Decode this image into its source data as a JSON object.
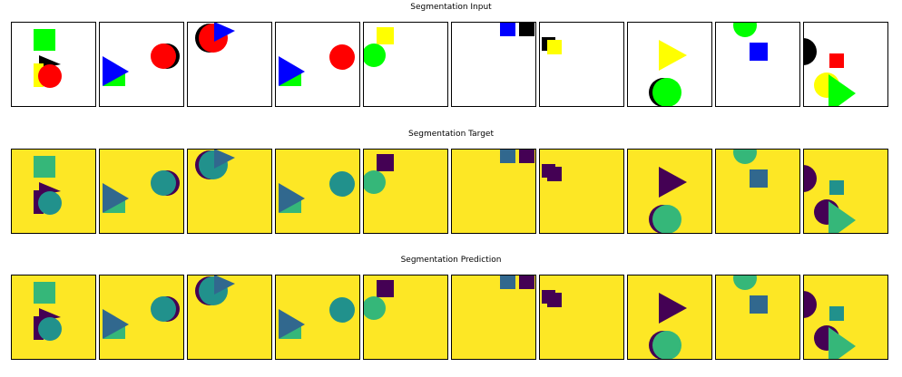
{
  "rows": [
    {
      "title": "Segmentation Input",
      "scheme": "input"
    },
    {
      "title": "Segmentation Target",
      "scheme": "label"
    },
    {
      "title": "Segmentation Prediction",
      "scheme": "label"
    }
  ],
  "colors": {
    "input": {
      "background": "#ffffff",
      "green": "#00ff00",
      "red": "#ff0000",
      "blue": "#0000ff",
      "black": "#000000",
      "yellow": "#ffff00"
    },
    "label": {
      "background": "#fde725",
      "green": "#35b779",
      "red": "#21918c",
      "blue": "#31688e",
      "black": "#440154",
      "yellow": "#440154"
    },
    "frame": "#000000"
  },
  "panels": [
    {
      "shapes": [
        {
          "type": "square",
          "color": "green"
        },
        {
          "type": "triangle",
          "color": "black"
        },
        {
          "type": "square",
          "color": "yellow"
        },
        {
          "type": "circle",
          "color": "red"
        }
      ]
    },
    {
      "shapes": [
        {
          "type": "square",
          "color": "green"
        },
        {
          "type": "triangle",
          "color": "blue"
        },
        {
          "type": "circle",
          "color": "black"
        },
        {
          "type": "circle",
          "color": "red"
        }
      ]
    },
    {
      "shapes": [
        {
          "type": "circle",
          "color": "black"
        },
        {
          "type": "circle",
          "color": "red"
        },
        {
          "type": "triangle",
          "color": "blue"
        }
      ]
    },
    {
      "shapes": [
        {
          "type": "square",
          "color": "green"
        },
        {
          "type": "triangle",
          "color": "blue"
        },
        {
          "type": "circle",
          "color": "red"
        }
      ]
    },
    {
      "shapes": [
        {
          "type": "square",
          "color": "yellow"
        },
        {
          "type": "circle",
          "color": "green"
        }
      ]
    },
    {
      "shapes": [
        {
          "type": "square",
          "color": "blue"
        },
        {
          "type": "square",
          "color": "black"
        }
      ]
    },
    {
      "shapes": [
        {
          "type": "square",
          "color": "black"
        },
        {
          "type": "square",
          "color": "yellow"
        }
      ]
    },
    {
      "shapes": [
        {
          "type": "triangle",
          "color": "yellow"
        },
        {
          "type": "circle",
          "color": "black"
        },
        {
          "type": "circle",
          "color": "green"
        }
      ]
    },
    {
      "shapes": [
        {
          "type": "circle",
          "color": "green"
        },
        {
          "type": "square",
          "color": "blue"
        }
      ]
    },
    {
      "shapes": [
        {
          "type": "circle",
          "color": "black"
        },
        {
          "type": "square",
          "color": "red"
        },
        {
          "type": "circle",
          "color": "yellow"
        },
        {
          "type": "triangle",
          "color": "green"
        }
      ]
    }
  ]
}
